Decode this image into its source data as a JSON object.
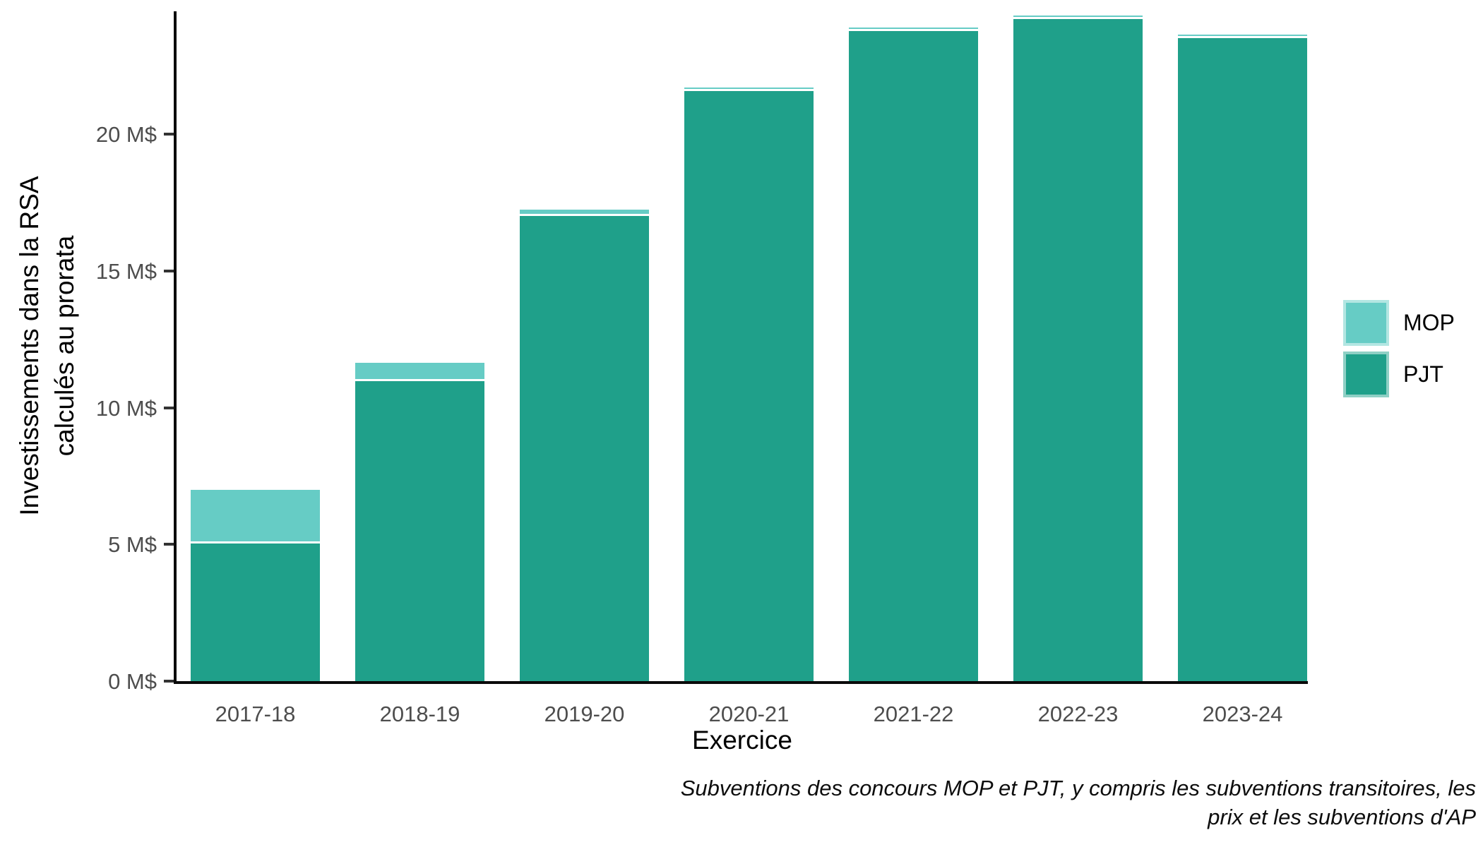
{
  "figure": {
    "background_color": "#FFFFFF",
    "axis_line_color": "#0A0A0A",
    "tick_text_color": "#4D4D4D",
    "segment_divider_color": "#FFFFFF"
  },
  "chart_data": {
    "type": "bar",
    "stacked": true,
    "orientation": "vertical",
    "title": "",
    "xlabel": "Exercice",
    "ylabel": "Investissements dans la RSA calculés au prorata",
    "ylabel_lines": [
      "Investissements dans la RSA",
      "calculés au prorata"
    ],
    "categories": [
      "2017-18",
      "2018-19",
      "2019-20",
      "2020-21",
      "2021-22",
      "2022-23",
      "2023-24"
    ],
    "series": [
      {
        "name": "MOP",
        "color": "#66CCC5",
        "values": [
          1.9,
          0.6,
          0.15,
          0.05,
          0.05,
          0.05,
          0.05
        ]
      },
      {
        "name": "PJT",
        "color": "#1FA08A",
        "values": [
          5.1,
          11.05,
          17.1,
          21.65,
          23.85,
          24.3,
          23.6
        ]
      }
    ],
    "stack_order_bottom_to_top": [
      "PJT",
      "MOP"
    ],
    "totals": [
      7.0,
      11.65,
      17.25,
      21.7,
      23.9,
      24.35,
      23.65
    ],
    "unit": "M$",
    "ylim": [
      0,
      24.5
    ],
    "yticks": [
      {
        "value": 0,
        "label": "0 M$"
      },
      {
        "value": 5,
        "label": "5 M$"
      },
      {
        "value": 10,
        "label": "10 M$"
      },
      {
        "value": 15,
        "label": "15 M$"
      },
      {
        "value": 20,
        "label": "20 M$"
      }
    ],
    "grid": false,
    "legend_position": "right",
    "caption_lines": [
      "Subventions des concours MOP et PJT, y compris les subventions transitoires, les",
      "prix et les subventions d'AP"
    ]
  }
}
